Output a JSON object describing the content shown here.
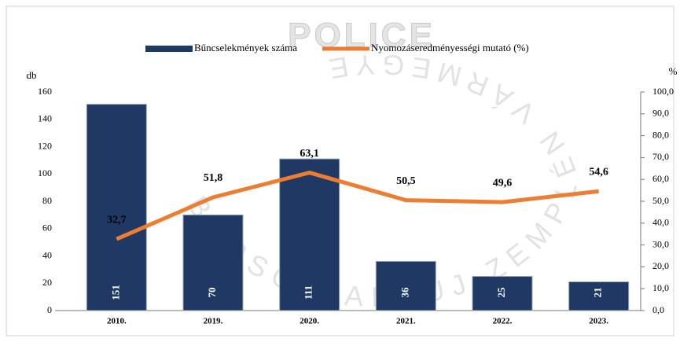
{
  "watermark": {
    "text": "POLICE",
    "seal_text": "BORSOD-ABAÚJ-ZEMPLÉN VÁRMEGYE"
  },
  "chart_data": {
    "type": "bar",
    "categories": [
      "2010.",
      "2019.",
      "2020.",
      "2021.",
      "2022.",
      "2023."
    ],
    "series": [
      {
        "name": "Bűncselekmények száma",
        "color": "#1f3864",
        "type": "bar",
        "values": [
          151,
          70,
          111,
          36,
          25,
          21
        ]
      },
      {
        "name": "Nyomozáseredményességi mutató (%)",
        "color": "#ed7d31",
        "type": "line",
        "axis": "y2",
        "values": [
          32.7,
          51.8,
          63.1,
          50.5,
          49.6,
          54.6
        ],
        "value_labels": [
          "32,7",
          "51,8",
          "63,1",
          "50,5",
          "49,6",
          "54,6"
        ]
      }
    ],
    "y_label": "db",
    "y2_label": "%",
    "ylim": [
      0,
      160
    ],
    "yticks": [
      0,
      20,
      40,
      60,
      80,
      100,
      120,
      140,
      160
    ],
    "y2lim": [
      0,
      100
    ],
    "y2ticks": [
      {
        "value": 0,
        "label": "0,0"
      },
      {
        "value": 10,
        "label": "10,0"
      },
      {
        "value": 20,
        "label": "20,0"
      },
      {
        "value": 30,
        "label": "30,0"
      },
      {
        "value": 40,
        "label": "40,0"
      },
      {
        "value": 50,
        "label": "50,0"
      },
      {
        "value": 60,
        "label": "60,0"
      },
      {
        "value": 70,
        "label": "70,0"
      },
      {
        "value": 80,
        "label": "80,0"
      },
      {
        "value": 90,
        "label": "90,0"
      },
      {
        "value": 100,
        "label": "100,0"
      }
    ],
    "legend": "top",
    "grid": false
  }
}
